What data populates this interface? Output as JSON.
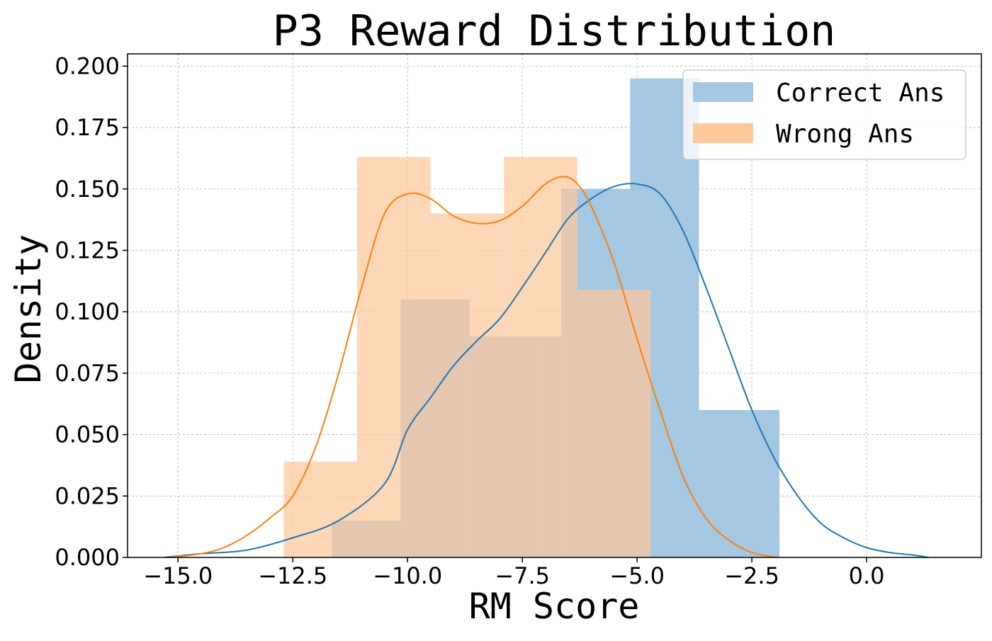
{
  "chart_data": {
    "type": "bar",
    "title": "P3 Reward Distribution",
    "xlabel": "RM Score",
    "ylabel": "Density",
    "xlim": [
      -16.1,
      2.5
    ],
    "ylim": [
      0,
      0.205
    ],
    "x_ticks": [
      -15.0,
      -12.5,
      -10.0,
      -7.5,
      -5.0,
      -2.5,
      0.0
    ],
    "x_tick_labels": [
      "−15.0",
      "−12.5",
      "−10.0",
      "−7.5",
      "−5.0",
      "−2.5",
      "0.0"
    ],
    "y_ticks": [
      0.0,
      0.025,
      0.05,
      0.075,
      0.1,
      0.125,
      0.15,
      0.175,
      0.2
    ],
    "y_tick_labels": [
      "0.000",
      "0.025",
      "0.050",
      "0.075",
      "0.100",
      "0.125",
      "0.150",
      "0.175",
      "0.200"
    ],
    "grid": true,
    "legend_position": "top-right",
    "series": [
      {
        "name": "Correct Ans",
        "fill_color": "#a4c7e2",
        "line_color": "#1f77b4",
        "bins": [
          {
            "x0": -11.65,
            "x1": -10.15,
            "density": 0.015
          },
          {
            "x0": -10.15,
            "x1": -8.65,
            "density": 0.105
          },
          {
            "x0": -8.65,
            "x1": -7.15,
            "density": 0.09
          },
          {
            "x0": -7.15,
            "x1": -6.65,
            "density": 0.09
          },
          {
            "x0": -6.65,
            "x1": -5.15,
            "density": 0.15
          },
          {
            "x0": -5.15,
            "x1": -3.65,
            "density": 0.195
          },
          {
            "x0": -3.65,
            "x1": -1.9,
            "density": 0.06
          }
        ],
        "kde": [
          [
            -15.3,
            0.0
          ],
          [
            -14.5,
            0.0015
          ],
          [
            -13.5,
            0.003
          ],
          [
            -12.5,
            0.008
          ],
          [
            -11.5,
            0.015
          ],
          [
            -10.5,
            0.03
          ],
          [
            -10.0,
            0.052
          ],
          [
            -9.5,
            0.065
          ],
          [
            -9.0,
            0.078
          ],
          [
            -8.5,
            0.088
          ],
          [
            -8.0,
            0.097
          ],
          [
            -7.5,
            0.11
          ],
          [
            -7.0,
            0.124
          ],
          [
            -6.5,
            0.138
          ],
          [
            -6.0,
            0.146
          ],
          [
            -5.5,
            0.151
          ],
          [
            -5.0,
            0.152
          ],
          [
            -4.5,
            0.148
          ],
          [
            -4.0,
            0.133
          ],
          [
            -3.5,
            0.11
          ],
          [
            -3.0,
            0.085
          ],
          [
            -2.5,
            0.06
          ],
          [
            -2.0,
            0.04
          ],
          [
            -1.5,
            0.025
          ],
          [
            -1.0,
            0.014
          ],
          [
            -0.5,
            0.008
          ],
          [
            0.0,
            0.004
          ],
          [
            0.5,
            0.002
          ],
          [
            1.0,
            0.001
          ],
          [
            1.35,
            0.0
          ]
        ]
      },
      {
        "name": "Wrong Ans",
        "fill_color": "#fec89b",
        "line_color": "#ff7f0e",
        "bins": [
          {
            "x0": -12.7,
            "x1": -11.1,
            "density": 0.039
          },
          {
            "x0": -11.1,
            "x1": -9.5,
            "density": 0.163
          },
          {
            "x0": -9.5,
            "x1": -7.9,
            "density": 0.14
          },
          {
            "x0": -7.9,
            "x1": -6.3,
            "density": 0.163
          },
          {
            "x0": -6.3,
            "x1": -4.7,
            "density": 0.109
          }
        ],
        "kde": [
          [
            -15.2,
            0.0
          ],
          [
            -14.5,
            0.0015
          ],
          [
            -14.0,
            0.004
          ],
          [
            -13.5,
            0.009
          ],
          [
            -13.0,
            0.016
          ],
          [
            -12.5,
            0.025
          ],
          [
            -12.0,
            0.045
          ],
          [
            -11.5,
            0.075
          ],
          [
            -11.0,
            0.11
          ],
          [
            -10.5,
            0.14
          ],
          [
            -10.0,
            0.148
          ],
          [
            -9.5,
            0.146
          ],
          [
            -9.0,
            0.139
          ],
          [
            -8.5,
            0.136
          ],
          [
            -8.0,
            0.137
          ],
          [
            -7.5,
            0.143
          ],
          [
            -7.0,
            0.152
          ],
          [
            -6.6,
            0.155
          ],
          [
            -6.3,
            0.152
          ],
          [
            -6.0,
            0.143
          ],
          [
            -5.5,
            0.12
          ],
          [
            -5.0,
            0.089
          ],
          [
            -4.5,
            0.06
          ],
          [
            -4.0,
            0.033
          ],
          [
            -3.5,
            0.016
          ],
          [
            -3.0,
            0.007
          ],
          [
            -2.5,
            0.002
          ],
          [
            -1.95,
            0.0
          ]
        ]
      }
    ]
  }
}
